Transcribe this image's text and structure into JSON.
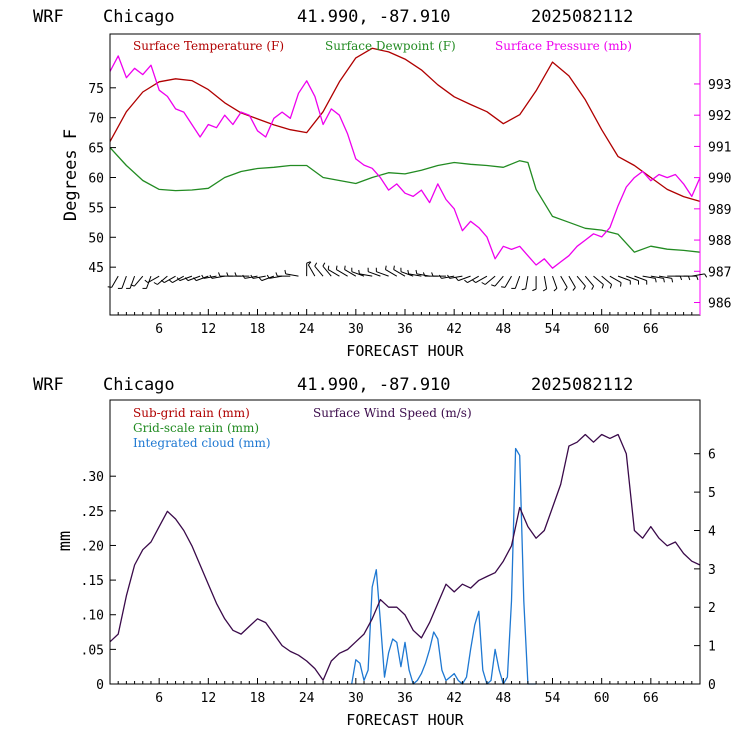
{
  "header": {
    "model": "WRF",
    "city": "Chicago",
    "coords": "41.990, -87.910",
    "run": "2025082112"
  },
  "colors": {
    "temp": "#b00000",
    "dew": "#228b22",
    "pres": "#ee00ee",
    "subgrid": "#b00000",
    "gridscale": "#228b22",
    "cloud": "#1e78d2",
    "wind": "#3a0a4a",
    "barb": "#000000"
  },
  "chart_data": [
    {
      "type": "line",
      "xlabel": "FORECAST HOUR",
      "ylabel": "Degrees F",
      "xlim": [
        0,
        72
      ],
      "xticks": [
        "6",
        "12",
        "18",
        "24",
        "30",
        "36",
        "42",
        "48",
        "54",
        "60",
        "66"
      ],
      "ylim": [
        37,
        84
      ],
      "yticks": [
        "45",
        "50",
        "55",
        "60",
        "65",
        "70",
        "75"
      ],
      "y2lim": [
        985.6,
        994.6
      ],
      "y2ticks": [
        "986",
        "987",
        "988",
        "989",
        "990",
        "991",
        "992",
        "993"
      ],
      "legend": [
        "Surface Temperature (F)",
        "Surface Dewpoint (F)",
        "Surface Pressure (mb)"
      ],
      "series": [
        {
          "name": "Surface Temperature (F)",
          "axis": "left",
          "x": [
            0,
            2,
            4,
            6,
            8,
            10,
            12,
            14,
            16,
            18,
            20,
            22,
            24,
            26,
            28,
            30,
            32,
            34,
            36,
            38,
            40,
            42,
            44,
            46,
            48,
            50,
            52,
            54,
            56,
            58,
            60,
            62,
            64,
            66,
            68,
            70,
            72
          ],
          "y": [
            66,
            71,
            74.3,
            76,
            76.5,
            76.2,
            74.7,
            72.5,
            70.8,
            69.8,
            68.8,
            68,
            67.5,
            71,
            76,
            80,
            81.6,
            81,
            79.8,
            78,
            75.5,
            73.5,
            72.2,
            71,
            69,
            70.5,
            74.5,
            79.3,
            77,
            73,
            68,
            63.5,
            62,
            60,
            58,
            56.8,
            56
          ]
        },
        {
          "name": "Surface Dewpoint (F)",
          "axis": "left",
          "x": [
            0,
            2,
            4,
            6,
            8,
            10,
            12,
            14,
            16,
            18,
            20,
            22,
            24,
            26,
            28,
            30,
            32,
            34,
            36,
            38,
            40,
            42,
            44,
            46,
            48,
            50,
            51,
            52,
            54,
            56,
            58,
            60,
            62,
            64,
            66,
            68,
            70,
            72
          ],
          "y": [
            65,
            62,
            59.5,
            58,
            57.8,
            57.9,
            58.2,
            60,
            61,
            61.5,
            61.7,
            62,
            62,
            60,
            59.5,
            59,
            60,
            60.8,
            60.6,
            61.2,
            62,
            62.5,
            62.2,
            62,
            61.7,
            62.8,
            62.5,
            58,
            53.5,
            52.5,
            51.5,
            51.2,
            50.5,
            47.5,
            48.5,
            48,
            47.8,
            47.5
          ]
        },
        {
          "name": "Surface Pressure (mb)",
          "axis": "right",
          "x": [
            0,
            1,
            2,
            3,
            4,
            5,
            6,
            7,
            8,
            9,
            10,
            11,
            12,
            13,
            14,
            15,
            16,
            17,
            18,
            19,
            20,
            21,
            22,
            23,
            24,
            25,
            26,
            27,
            28,
            29,
            30,
            31,
            32,
            33,
            34,
            35,
            36,
            37,
            38,
            39,
            40,
            41,
            42,
            43,
            44,
            45,
            46,
            47,
            48,
            49,
            50,
            51,
            52,
            53,
            54,
            55,
            56,
            57,
            58,
            59,
            60,
            61,
            62,
            63,
            64,
            65,
            66,
            67,
            68,
            69,
            70,
            71,
            72
          ],
          "y": [
            993.4,
            993.9,
            993.2,
            993.5,
            993.3,
            993.6,
            992.8,
            992.6,
            992.2,
            992.1,
            991.7,
            991.3,
            991.7,
            991.6,
            992.0,
            991.7,
            992.1,
            992.0,
            991.5,
            991.3,
            991.9,
            992.1,
            991.9,
            992.7,
            993.1,
            992.6,
            991.7,
            992.2,
            992.0,
            991.4,
            990.6,
            990.4,
            990.3,
            990.0,
            989.6,
            989.8,
            989.5,
            989.4,
            989.6,
            989.2,
            989.8,
            989.3,
            989.0,
            988.3,
            988.6,
            988.4,
            988.1,
            987.4,
            987.8,
            987.7,
            987.8,
            987.5,
            987.2,
            987.4,
            987.1,
            987.3,
            987.5,
            987.8,
            988.0,
            988.2,
            988.1,
            988.4,
            989.1,
            989.7,
            990.0,
            990.2,
            989.9,
            990.1,
            990.0,
            990.1,
            989.8,
            989.4,
            990.0
          ]
        }
      ],
      "wind_barbs": {
        "x": [
          1,
          2,
          3,
          4,
          5,
          6,
          7,
          8,
          9,
          10,
          11,
          12,
          13,
          14,
          15,
          16,
          17,
          18,
          19,
          20,
          21,
          22,
          23,
          24,
          25,
          26,
          27,
          28,
          29,
          30,
          31,
          32,
          33,
          34,
          35,
          36,
          37,
          38,
          39,
          40,
          41,
          42,
          43,
          44,
          45,
          46,
          47,
          48,
          49,
          50,
          51,
          52,
          53,
          54,
          55,
          56,
          57,
          58,
          59,
          60,
          61,
          62,
          63,
          64,
          65,
          66,
          67,
          68,
          69,
          70,
          71
        ],
        "y": 43.5,
        "dir": [
          210,
          200,
          200,
          220,
          200,
          240,
          230,
          240,
          240,
          250,
          250,
          250,
          260,
          260,
          270,
          270,
          270,
          260,
          260,
          250,
          260,
          270,
          280,
          0,
          330,
          320,
          320,
          300,
          300,
          300,
          290,
          280,
          290,
          290,
          300,
          300,
          290,
          280,
          280,
          270,
          270,
          260,
          260,
          250,
          240,
          240,
          230,
          220,
          210,
          200,
          190,
          180,
          170,
          160,
          150,
          150,
          140,
          140,
          130,
          130,
          120,
          110,
          110,
          110,
          100,
          100,
          100,
          90,
          90,
          90,
          80
        ]
      }
    },
    {
      "type": "line",
      "xlabel": "FORECAST HOUR",
      "ylabel": "mm",
      "xlim": [
        0,
        72
      ],
      "xticks": [
        "6",
        "12",
        "18",
        "24",
        "30",
        "36",
        "42",
        "48",
        "54",
        "60",
        "66"
      ],
      "ylim": [
        0,
        0.41
      ],
      "yticks": [
        "0",
        ".05",
        ".10",
        ".15",
        ".20",
        ".25",
        ".30"
      ],
      "y2lim": [
        0,
        7.4
      ],
      "y2ticks": [
        "0",
        "1",
        "2",
        "3",
        "4",
        "5",
        "6"
      ],
      "legend": [
        "Sub-grid rain (mm)",
        "Grid-scale rain (mm)",
        "Integrated cloud (mm)",
        "Surface Wind Speed (m/s)"
      ],
      "series": [
        {
          "name": "Integrated cloud (mm)",
          "axis": "left",
          "x": [
            29.5,
            30,
            30.5,
            31,
            31.5,
            32,
            32.5,
            33,
            33.5,
            34,
            34.5,
            35,
            35.5,
            36,
            36.5,
            37,
            37.5,
            38,
            38.5,
            39,
            39.5,
            40,
            40.5,
            41,
            41.5,
            42,
            42.5,
            43,
            43.5,
            44,
            44.5,
            45,
            45.5,
            46,
            46.5,
            47,
            47.5,
            48,
            48.5,
            49,
            49.5,
            50,
            50.5,
            51,
            51.5,
            52
          ],
          "y": [
            0,
            0.035,
            0.03,
            0.005,
            0.02,
            0.14,
            0.165,
            0.09,
            0.01,
            0.045,
            0.065,
            0.06,
            0.025,
            0.06,
            0.02,
            0,
            0.005,
            0.015,
            0.03,
            0.05,
            0.075,
            0.065,
            0.02,
            0.005,
            0.01,
            0.015,
            0.005,
            0,
            0.01,
            0.05,
            0.085,
            0.105,
            0.02,
            0,
            0.005,
            0.05,
            0.02,
            0,
            0.01,
            0.12,
            0.34,
            0.33,
            0.12,
            0,
            0,
            0
          ]
        },
        {
          "name": "Surface Wind Speed (m/s)",
          "axis": "right",
          "x": [
            0,
            1,
            2,
            3,
            4,
            5,
            6,
            7,
            8,
            9,
            10,
            11,
            12,
            13,
            14,
            15,
            16,
            17,
            18,
            19,
            20,
            21,
            22,
            23,
            24,
            25,
            26,
            27,
            28,
            29,
            30,
            31,
            32,
            33,
            34,
            35,
            36,
            37,
            38,
            39,
            40,
            41,
            42,
            43,
            44,
            45,
            46,
            47,
            48,
            49,
            50,
            51,
            52,
            53,
            54,
            55,
            56,
            57,
            58,
            59,
            60,
            61,
            62,
            63,
            64,
            65,
            66,
            67,
            68,
            69,
            70,
            71,
            72
          ],
          "y": [
            1.1,
            1.3,
            2.3,
            3.1,
            3.5,
            3.7,
            4.1,
            4.5,
            4.3,
            4.0,
            3.6,
            3.1,
            2.6,
            2.1,
            1.7,
            1.4,
            1.3,
            1.5,
            1.7,
            1.6,
            1.3,
            1.0,
            0.85,
            0.75,
            0.6,
            0.4,
            0.1,
            0.6,
            0.8,
            0.9,
            1.1,
            1.3,
            1.7,
            2.2,
            2.0,
            2.0,
            1.8,
            1.4,
            1.2,
            1.6,
            2.1,
            2.6,
            2.4,
            2.6,
            2.5,
            2.7,
            2.8,
            2.9,
            3.2,
            3.6,
            4.6,
            4.1,
            3.8,
            4.0,
            4.6,
            5.2,
            6.2,
            6.3,
            6.5,
            6.3,
            6.5,
            6.4,
            6.5,
            6.0,
            4.0,
            3.8,
            4.1,
            3.8,
            3.6,
            3.7,
            3.4,
            3.2,
            3.1
          ]
        }
      ]
    }
  ]
}
